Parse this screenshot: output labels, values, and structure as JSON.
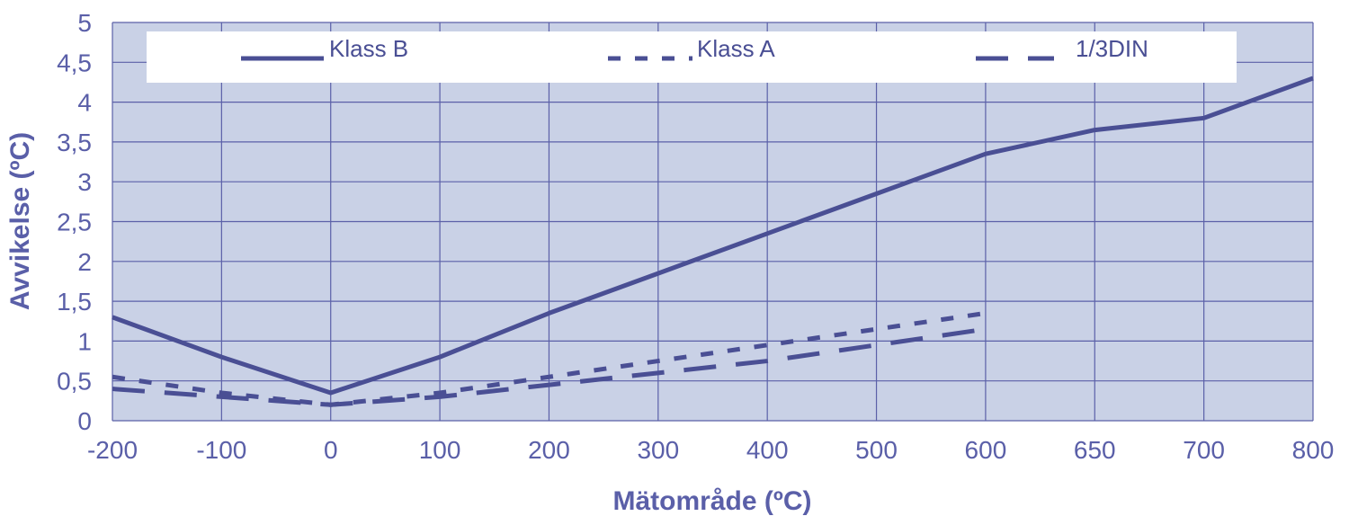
{
  "colors": {
    "line": "#4a4f94",
    "text": "#5a5fa8",
    "plot_bg": "#c9d1e6",
    "grid": "#5b60a8",
    "legend_bg": "#ffffff"
  },
  "chart_data": {
    "type": "line",
    "categories": [
      "-200",
      "-100",
      "0",
      "100",
      "200",
      "300",
      "400",
      "500",
      "600",
      "650",
      "700",
      "800"
    ],
    "series": [
      {
        "name": "Klass B",
        "style": "solid",
        "values": [
          1.3,
          0.8,
          0.35,
          0.8,
          1.35,
          1.85,
          2.35,
          2.85,
          3.35,
          3.65,
          3.8,
          4.3
        ]
      },
      {
        "name": "Klass A",
        "style": "dotted",
        "values": [
          0.55,
          0.35,
          0.2,
          0.35,
          0.55,
          0.75,
          0.95,
          1.15,
          1.35,
          null,
          null,
          null
        ]
      },
      {
        "name": "1/3DIN",
        "style": "dashed",
        "values": [
          0.4,
          0.3,
          0.2,
          0.3,
          0.45,
          0.6,
          0.75,
          0.95,
          1.15,
          null,
          null,
          null
        ]
      }
    ],
    "y_ticks": [
      "0",
      "0,5",
      "1",
      "1,5",
      "2",
      "2,5",
      "3",
      "3,5",
      "4",
      "4,5",
      "5"
    ],
    "ylim": [
      0,
      5
    ],
    "xlabel": "Mätområde (ºC)",
    "ylabel": "Avvikelse (ºC)",
    "grid": true,
    "legend_position": "top"
  }
}
